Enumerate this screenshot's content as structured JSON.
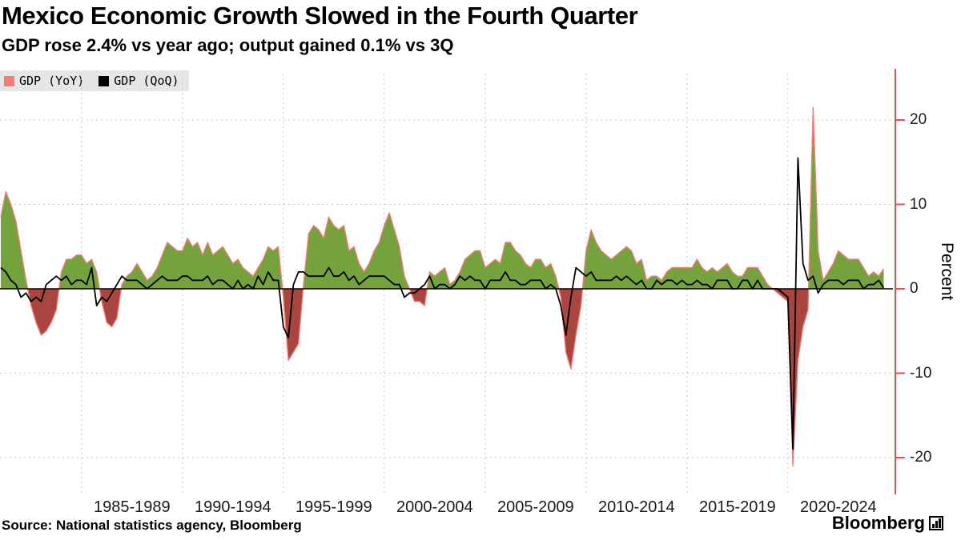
{
  "header": {
    "title": "Mexico Economic Growth Slowed in the Fourth Quarter",
    "subtitle": "GDP rose 2.4% vs year ago; output gained 0.1% vs 3Q"
  },
  "legend": {
    "items": [
      {
        "label": "GDP (YoY)",
        "swatch_color": "#f47c76"
      },
      {
        "label": "GDP (QoQ)",
        "swatch_color": "#000000"
      }
    ]
  },
  "footer": {
    "source": "Source: National statistics agency, Bloomberg",
    "logo_text": "Bloomberg",
    "logo_chart_icon": "bar-chart-icon"
  },
  "chart_data": {
    "type": "area+line",
    "title": "Mexico Economic Growth Slowed in the Fourth Quarter",
    "subtitle": "GDP rose 2.4% vs year ago; output gained 0.1% vs 3Q",
    "frequency": "quarterly",
    "x_start": "1981Q1",
    "x_end": "2024Q4",
    "x_group_labels": [
      "1985-1989",
      "1990-1994",
      "1995-1999",
      "2000-2004",
      "2005-2009",
      "2010-2014",
      "2015-2019",
      "2020-2024"
    ],
    "ylabel": "Percent",
    "y_ticks": [
      20,
      10,
      0,
      -10,
      -20
    ],
    "ylim": [
      -22,
      23
    ],
    "grid": "dashed",
    "legend_position": "top-left",
    "colors": {
      "positive_fill": "#74a23c",
      "negative_fill": "#a8453f",
      "yoy_stroke": "#f27d78",
      "qoq_stroke": "#000000",
      "axis": "#e8504a",
      "gridline": "#c9c9c9",
      "zero_line": "#000000"
    },
    "series": [
      {
        "name": "GDP (YoY)",
        "type": "area",
        "values": [
          8.5,
          11.5,
          10.0,
          8.0,
          4.5,
          1.0,
          -2.0,
          -4.0,
          -5.5,
          -5.0,
          -4.0,
          -2.5,
          2.0,
          3.5,
          3.5,
          4.0,
          4.0,
          3.0,
          3.5,
          2.0,
          -1.5,
          -4.0,
          -4.5,
          -3.5,
          0.5,
          1.5,
          2.0,
          3.0,
          2.0,
          1.0,
          1.5,
          2.5,
          4.0,
          5.5,
          5.0,
          4.5,
          4.5,
          6.0,
          5.0,
          5.5,
          4.0,
          5.5,
          4.0,
          4.5,
          5.0,
          4.0,
          3.0,
          3.5,
          2.5,
          2.0,
          1.5,
          2.5,
          3.5,
          5.0,
          4.5,
          5.0,
          -1.0,
          -8.5,
          -7.5,
          -6.5,
          0.5,
          6.5,
          7.5,
          7.0,
          6.0,
          8.5,
          7.5,
          7.0,
          7.5,
          4.5,
          5.0,
          3.0,
          2.0,
          3.0,
          4.5,
          5.5,
          7.5,
          9.0,
          7.0,
          5.0,
          1.5,
          0.0,
          -1.5,
          -1.5,
          -2.0,
          2.0,
          1.5,
          2.0,
          2.5,
          0.5,
          1.0,
          2.0,
          3.5,
          4.0,
          4.5,
          4.5,
          2.5,
          3.0,
          3.5,
          3.0,
          5.5,
          5.5,
          4.5,
          4.0,
          3.0,
          2.5,
          3.5,
          3.5,
          2.5,
          3.0,
          1.5,
          -1.0,
          -7.5,
          -9.5,
          -5.5,
          -2.0,
          4.5,
          7.0,
          5.5,
          4.5,
          4.0,
          3.5,
          4.0,
          4.5,
          5.0,
          4.5,
          3.0,
          3.5,
          1.0,
          1.5,
          1.5,
          1.0,
          2.0,
          2.5,
          2.5,
          2.5,
          2.5,
          2.5,
          3.5,
          2.5,
          2.0,
          2.5,
          2.0,
          2.5,
          3.0,
          2.0,
          1.5,
          1.5,
          2.5,
          2.5,
          2.5,
          1.5,
          0.5,
          0.0,
          -0.5,
          -1.0,
          -1.5,
          -21.0,
          -8.5,
          -4.5,
          -2.5,
          21.5,
          4.5,
          1.0,
          2.0,
          3.0,
          4.5,
          4.0,
          3.5,
          3.5,
          3.5,
          2.5,
          1.5,
          2.0,
          1.5,
          2.4
        ]
      },
      {
        "name": "GDP (QoQ)",
        "type": "line",
        "values": [
          2.5,
          2.0,
          1.0,
          0.5,
          -1.0,
          -0.5,
          -1.5,
          -1.0,
          -1.5,
          0.5,
          1.0,
          1.5,
          1.0,
          1.5,
          0.5,
          1.0,
          1.0,
          0.5,
          2.5,
          -2.0,
          -1.0,
          -1.5,
          -0.5,
          0.5,
          1.5,
          1.0,
          1.0,
          1.0,
          0.5,
          0.0,
          0.5,
          1.0,
          1.5,
          1.0,
          1.0,
          1.0,
          1.5,
          1.5,
          1.0,
          1.0,
          1.0,
          1.5,
          0.5,
          1.0,
          1.0,
          0.5,
          0.0,
          1.0,
          0.0,
          0.5,
          0.0,
          1.5,
          0.5,
          2.0,
          1.0,
          1.0,
          -4.5,
          -5.8,
          0.5,
          2.0,
          2.0,
          1.5,
          1.5,
          1.5,
          1.5,
          2.5,
          1.5,
          1.5,
          2.0,
          1.0,
          1.5,
          0.5,
          1.0,
          1.5,
          1.5,
          1.5,
          1.5,
          1.0,
          0.5,
          0.5,
          -1.0,
          -0.5,
          -0.5,
          0.0,
          0.5,
          1.5,
          0.0,
          0.5,
          0.5,
          0.0,
          0.5,
          1.5,
          1.0,
          1.5,
          1.0,
          1.0,
          0.0,
          1.0,
          1.0,
          1.0,
          2.0,
          1.0,
          1.0,
          0.5,
          0.5,
          1.0,
          1.0,
          1.0,
          0.0,
          0.5,
          0.0,
          -2.0,
          -5.5,
          -1.0,
          2.5,
          2.0,
          1.5,
          2.0,
          1.0,
          1.0,
          1.0,
          1.0,
          1.5,
          1.0,
          1.5,
          1.0,
          0.5,
          1.0,
          0.0,
          0.0,
          1.0,
          0.5,
          1.0,
          1.0,
          0.5,
          1.0,
          0.5,
          0.5,
          1.0,
          0.5,
          0.5,
          0.0,
          1.0,
          1.0,
          1.0,
          0.0,
          0.0,
          1.0,
          1.0,
          0.0,
          1.0,
          0.0,
          0.0,
          0.0,
          0.0,
          -0.5,
          -1.0,
          -19.0,
          15.5,
          3.0,
          1.0,
          1.5,
          -0.5,
          0.5,
          1.0,
          1.0,
          1.0,
          0.5,
          1.0,
          1.0,
          1.0,
          0.0,
          0.5,
          0.5,
          1.0,
          0.1
        ]
      }
    ]
  }
}
